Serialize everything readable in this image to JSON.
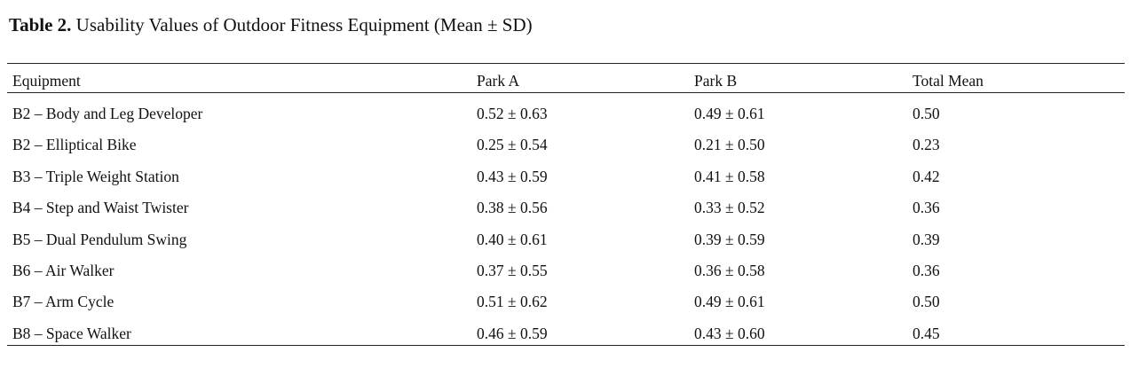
{
  "caption": {
    "label": "Table 2.",
    "title": "Usability Values of Outdoor Fitness Equipment (Mean ± SD)"
  },
  "table": {
    "header": [
      "Equipment",
      "Park A",
      "Park B",
      "Total Mean"
    ],
    "rows": [
      [
        "B2 – Body and Leg Developer",
        "0.52 ± 0.63",
        "0.49 ± 0.61",
        "0.50"
      ],
      [
        "B2 – Elliptical Bike",
        "0.25 ± 0.54",
        "0.21 ± 0.50",
        "0.23"
      ],
      [
        "B3 – Triple Weight Station",
        "0.43 ± 0.59",
        "0.41 ± 0.58",
        "0.42"
      ],
      [
        "B4 – Step and Waist Twister",
        "0.38 ± 0.56",
        "0.33 ± 0.52",
        "0.36"
      ],
      [
        "B5 – Dual Pendulum Swing",
        "0.40 ± 0.61",
        "0.39 ± 0.59",
        "0.39"
      ],
      [
        "B6 – Air Walker",
        "0.37 ± 0.55",
        "0.36 ± 0.58",
        "0.36"
      ],
      [
        "B7 – Arm Cycle",
        "0.51 ± 0.62",
        "0.49 ± 0.61",
        "0.50"
      ],
      [
        "B8 – Space Walker",
        "0.46 ± 0.59",
        "0.43 ± 0.60",
        "0.45"
      ]
    ]
  }
}
